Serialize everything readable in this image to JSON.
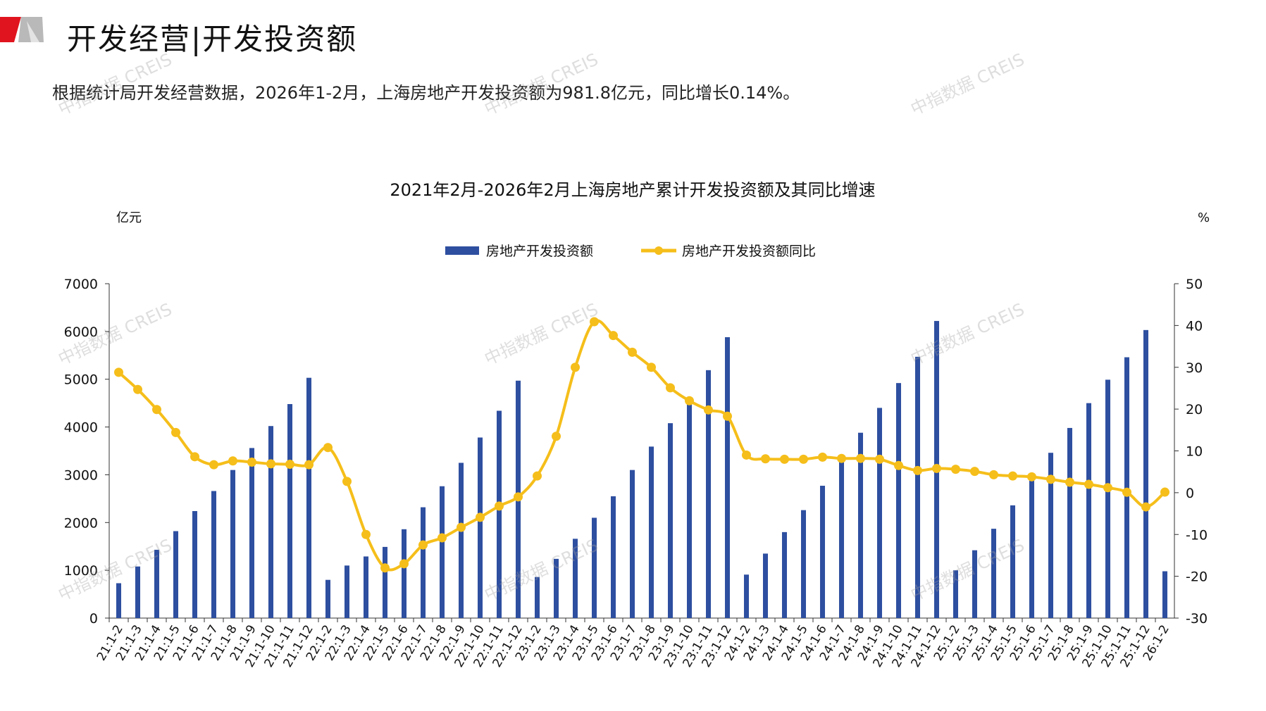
{
  "header": {
    "title": "开发经营|开发投资额",
    "summary": "根据统计局开发经营数据，2026年1-2月，上海房地产开发投资额为981.8亿元，同比增长0.14%。"
  },
  "watermark": "中指数据 CREIS",
  "colors": {
    "bar": "#2E4FA0",
    "line": "#F5BE1A",
    "accent_red": "#E0141E",
    "accent_grey": "#B9B9B9"
  },
  "chart_data": {
    "type": "bar+line",
    "title": "2021年2月-2026年2月上海房地产累计开发投资额及其同比增速",
    "ylabel_left": "亿元",
    "ylabel_right": "%",
    "ylim_left": [
      0,
      7000
    ],
    "ylim_right": [
      -30,
      50
    ],
    "yticks_left": [
      "0",
      "1000",
      "2000",
      "3000",
      "4000",
      "5000",
      "6000",
      "7000"
    ],
    "yticks_right": [
      "-30",
      "-20",
      "-10",
      "0",
      "10",
      "20",
      "30",
      "40",
      "50"
    ],
    "legend_position": "top-center",
    "grid": false,
    "categories": [
      "21:1-2",
      "21:1-3",
      "21:1-4",
      "21:1-5",
      "21:1-6",
      "21:1-7",
      "21:1-8",
      "21:1-9",
      "21:1-10",
      "21:1-11",
      "21:1-12",
      "22:1-2",
      "22:1-3",
      "22:1-4",
      "22:1-5",
      "22:1-6",
      "22:1-7",
      "22:1-8",
      "22:1-9",
      "22:1-10",
      "22:1-11",
      "22:1-12",
      "23:1-2",
      "23:1-3",
      "23:1-4",
      "23:1-5",
      "23:1-6",
      "23:1-7",
      "23:1-8",
      "23:1-9",
      "23:1-10",
      "23:1-11",
      "23:1-12",
      "24:1-2",
      "24:1-3",
      "24:1-4",
      "24:1-5",
      "24:1-6",
      "24:1-7",
      "24:1-8",
      "24:1-9",
      "24:1-10",
      "24:1-11",
      "24:1-12",
      "25:1-2",
      "25:1-3",
      "25:1-4",
      "25:1-5",
      "25:1-6",
      "25:1-7",
      "25:1-8",
      "25:1-9",
      "25:1-10",
      "25:1-11",
      "25:1-12",
      "26:1-2"
    ],
    "series": [
      {
        "name": "房地产开发投资额",
        "kind": "bar",
        "axis": "left",
        "values": [
          730,
          1080,
          1430,
          1820,
          2240,
          2660,
          3100,
          3560,
          4020,
          4480,
          5030,
          800,
          1100,
          1290,
          1490,
          1860,
          2320,
          2760,
          3250,
          3780,
          4340,
          4970,
          860,
          1240,
          1660,
          2100,
          2550,
          3100,
          3590,
          4080,
          4580,
          5190,
          5880,
          910,
          1350,
          1800,
          2260,
          2770,
          3270,
          3880,
          4400,
          4920,
          5470,
          6220,
          1000,
          1420,
          1870,
          2360,
          2900,
          3460,
          3980,
          4500,
          4990,
          5460,
          6030,
          980
        ]
      },
      {
        "name": "房地产开发投资额同比",
        "kind": "line",
        "axis": "right",
        "values": [
          28.8,
          24.7,
          19.9,
          14.4,
          8.6,
          6.7,
          7.6,
          7.3,
          6.9,
          6.8,
          6.7,
          10.8,
          2.7,
          -10.0,
          -18.0,
          -17.0,
          -12.5,
          -10.8,
          -8.3,
          -5.9,
          -3.2,
          -1.0,
          4.0,
          13.5,
          30.0,
          40.9,
          37.6,
          33.6,
          30.0,
          25.1,
          22.0,
          19.8,
          18.3,
          9.0,
          8.1,
          8.0,
          8.0,
          8.5,
          8.2,
          8.2,
          8.0,
          6.5,
          5.3,
          5.8,
          5.6,
          5.1,
          4.3,
          4.0,
          3.8,
          3.2,
          2.5,
          2.0,
          1.2,
          0.1,
          -3.4,
          0.14
        ]
      }
    ]
  }
}
